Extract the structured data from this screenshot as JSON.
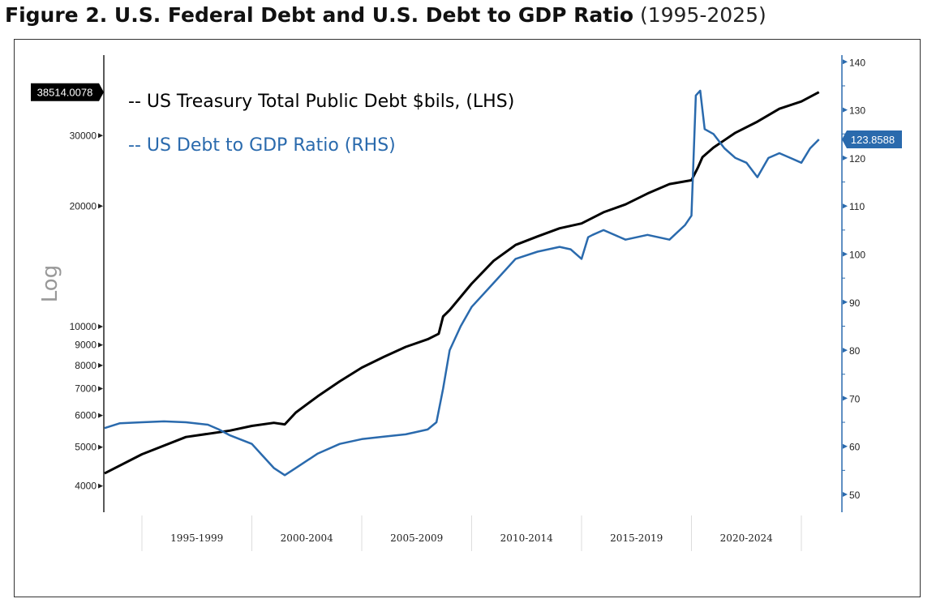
{
  "title": {
    "main": "Figure 2. U.S. Federal Debt and U.S. Debt to GDP Ratio",
    "range": "(1995-2025)"
  },
  "chart_data": {
    "type": "line",
    "title": "Figure 2. U.S. Federal Debt and U.S. Debt to GDP Ratio (1995-2025)",
    "categories": [
      "1995-1999",
      "2000-2004",
      "2005-2009",
      "2010-2014",
      "2015-2019",
      "2020-2024"
    ],
    "ylabel_left": "Log",
    "left_axis": {
      "scale": "log",
      "ticks": [
        4000,
        5000,
        6000,
        7000,
        8000,
        9000,
        10000,
        20000,
        30000
      ]
    },
    "right_axis": {
      "scale": "linear",
      "ylim": [
        48,
        142
      ],
      "ticks": [
        50,
        60,
        70,
        80,
        90,
        100,
        110,
        120,
        130,
        140
      ]
    },
    "grid": false,
    "legend": "top-left",
    "series": [
      {
        "name": "-- US Treasury Total Public Debt $bils, (LHS)",
        "axis": "left",
        "color": "#000000",
        "last_value": "38514.0078",
        "x": [
          1993.3,
          1995,
          1997,
          1999,
          2000,
          2001,
          2001.5,
          2002,
          2003,
          2004,
          2005,
          2006,
          2007,
          2008,
          2008.5,
          2008.7,
          2009,
          2010,
          2011,
          2012,
          2013,
          2014,
          2015,
          2016,
          2017,
          2018,
          2019,
          2020,
          2020.3,
          2020.5,
          2021,
          2022,
          2023,
          2024,
          2025,
          2025.8
        ],
        "values": [
          4300,
          4800,
          5300,
          5500,
          5650,
          5750,
          5700,
          6100,
          6700,
          7300,
          7900,
          8400,
          8900,
          9300,
          9600,
          10600,
          11000,
          12800,
          14600,
          16000,
          16800,
          17600,
          18100,
          19300,
          20200,
          21500,
          22700,
          23200,
          25000,
          26500,
          28000,
          30500,
          32500,
          35000,
          36500,
          38514
        ]
      },
      {
        "name": "-- US Debt to GDP Ratio (RHS)",
        "axis": "right",
        "color": "#2a6aad",
        "last_value": "123.8588",
        "x": [
          1993.3,
          1994,
          1995,
          1996,
          1997,
          1998,
          1998.5,
          1999,
          2000,
          2000.5,
          2001,
          2001.5,
          2002,
          2003,
          2004,
          2005,
          2006,
          2007,
          2008,
          2008.4,
          2008.7,
          2009,
          2009.5,
          2010,
          2011,
          2012,
          2013,
          2014,
          2014.5,
          2015,
          2015.3,
          2015.5,
          2016,
          2017,
          2018,
          2019,
          2019.7,
          2020,
          2020.2,
          2020.4,
          2020.6,
          2021,
          2021.5,
          2022,
          2022.5,
          2023,
          2023.5,
          2024,
          2024.5,
          2025,
          2025.4,
          2025.8
        ],
        "values": [
          63.8,
          64.8,
          65,
          65.2,
          65,
          64.5,
          63.5,
          62.3,
          60.5,
          58,
          55.5,
          54,
          55.5,
          58.5,
          60.5,
          61.5,
          62,
          62.5,
          63.5,
          65,
          72,
          80,
          85,
          89,
          94,
          99,
          100.5,
          101.5,
          101,
          99,
          103.5,
          104,
          105,
          103,
          104,
          103,
          106,
          108,
          133,
          134,
          126,
          125,
          122,
          120,
          119,
          116,
          120,
          121,
          120,
          119,
          122,
          123.86
        ]
      }
    ]
  }
}
